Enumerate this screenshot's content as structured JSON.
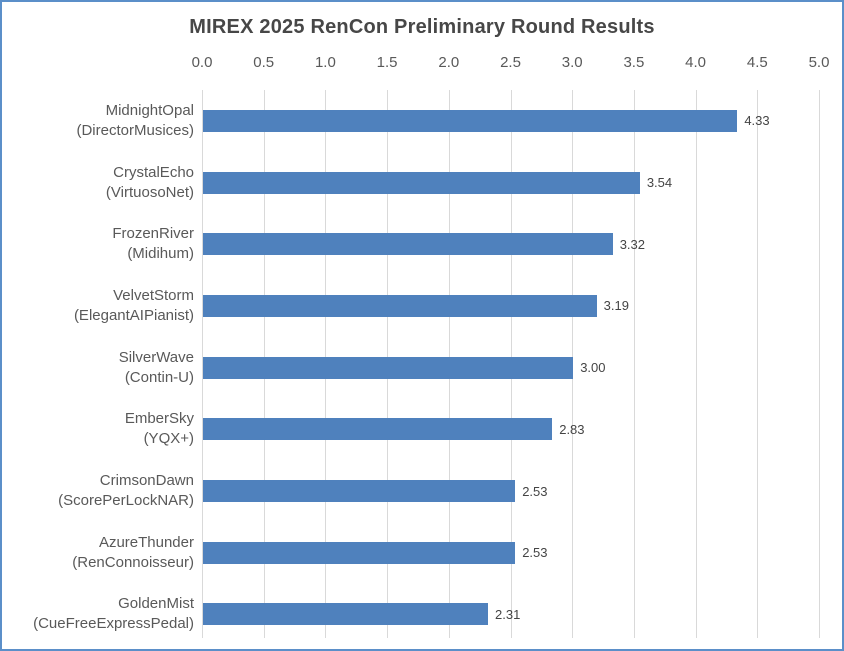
{
  "chart_data": {
    "type": "bar",
    "orientation": "horizontal",
    "title": "MIREX 2025 RenCon Preliminary Round Results",
    "categories": [
      {
        "name": "MidnightOpal",
        "system": "(DirectorMusices)"
      },
      {
        "name": "CrystalEcho",
        "system": "(VirtuosoNet)"
      },
      {
        "name": "FrozenRiver",
        "system": "(Midihum)"
      },
      {
        "name": "VelvetStorm",
        "system": "(ElegantAIPianist)"
      },
      {
        "name": "SilverWave",
        "system": "(Contin-U)"
      },
      {
        "name": "EmberSky",
        "system": "(YQX+)"
      },
      {
        "name": "CrimsonDawn",
        "system": "(ScorePerLockNAR)"
      },
      {
        "name": "AzureThunder",
        "system": "(RenConnoisseur)"
      },
      {
        "name": "GoldenMist",
        "system": "(CueFreeExpressPedal)"
      }
    ],
    "values": [
      4.33,
      3.54,
      3.32,
      3.19,
      3.0,
      2.83,
      2.53,
      2.53,
      2.31
    ],
    "value_labels": [
      "4.33",
      "3.54",
      "3.32",
      "3.19",
      "3.00",
      "2.83",
      "2.53",
      "2.53",
      "2.31"
    ],
    "xlabel": "",
    "ylabel": "",
    "x_axis": {
      "min": 0,
      "max": 5,
      "step": 0.5,
      "position": "top",
      "tick_labels": [
        "0.0",
        "0.5",
        "1.0",
        "1.5",
        "2.0",
        "2.5",
        "3.0",
        "3.5",
        "4.0",
        "4.5",
        "5.0"
      ]
    },
    "grid": true,
    "legend": false,
    "colors": {
      "bar": "#4f81bd",
      "gridline": "#d9d9d9",
      "title_text": "#474747",
      "axis_text": "#595959",
      "value_text": "#444444",
      "chart_border": "#5b8fc9",
      "background": "#ffffff"
    }
  }
}
